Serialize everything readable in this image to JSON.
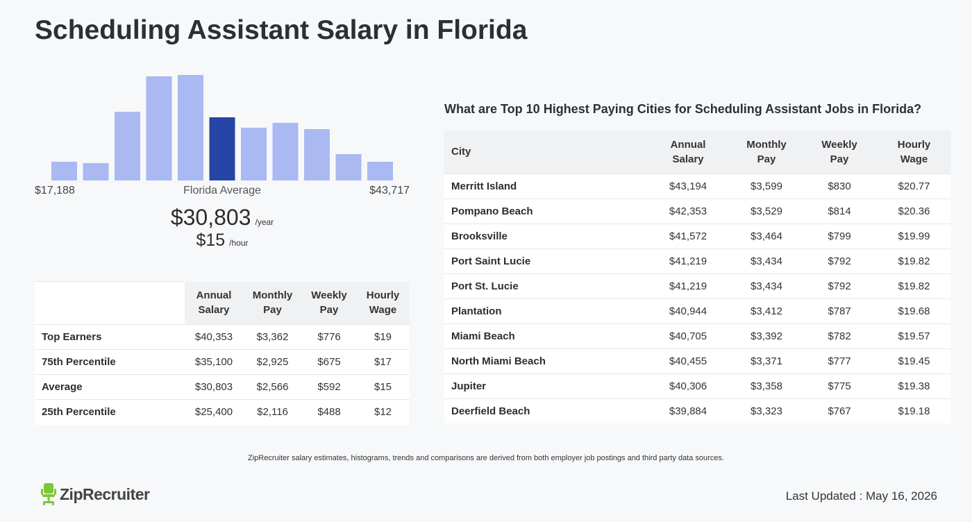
{
  "page": {
    "title": "Scheduling Assistant Salary in Florida"
  },
  "colors": {
    "bar": "#aab9f1",
    "bar_highlight": "#2546a6",
    "logo_green": "#7cc63a"
  },
  "chart_data": {
    "type": "bar",
    "title": "",
    "categories": [
      "1",
      "2",
      "3",
      "4",
      "5",
      "6",
      "7",
      "8",
      "9",
      "10",
      "11"
    ],
    "values": [
      27,
      25,
      99,
      150,
      152,
      91,
      76,
      83,
      74,
      38,
      27
    ],
    "highlight_index": 5,
    "ylim": [
      0,
      152
    ],
    "grid": false,
    "labels": {
      "min": "$17,188",
      "middle": "Florida Average",
      "max": "$43,717"
    }
  },
  "average": {
    "yearly": "$30,803",
    "yearly_unit": "/year",
    "hourly": "$15",
    "hourly_unit": "/hour"
  },
  "percentile_table": {
    "headers": [
      {
        "line1": "Annual",
        "line2": "Salary"
      },
      {
        "line1": "Monthly",
        "line2": "Pay"
      },
      {
        "line1": "Weekly",
        "line2": "Pay"
      },
      {
        "line1": "Hourly",
        "line2": "Wage"
      }
    ],
    "rows": [
      {
        "label": "Top Earners",
        "annual": "$40,353",
        "monthly": "$3,362",
        "weekly": "$776",
        "hourly": "$19"
      },
      {
        "label": "75th Percentile",
        "annual": "$35,100",
        "monthly": "$2,925",
        "weekly": "$675",
        "hourly": "$17"
      },
      {
        "label": "Average",
        "annual": "$30,803",
        "monthly": "$2,566",
        "weekly": "$592",
        "hourly": "$15"
      },
      {
        "label": "25th Percentile",
        "annual": "$25,400",
        "monthly": "$2,116",
        "weekly": "$488",
        "hourly": "$12"
      }
    ]
  },
  "city_table": {
    "title": "What are Top 10 Highest Paying Cities for Scheduling Assistant Jobs in Florida?",
    "city_header": "City",
    "headers": [
      {
        "line1": "Annual",
        "line2": "Salary"
      },
      {
        "line1": "Monthly",
        "line2": "Pay"
      },
      {
        "line1": "Weekly",
        "line2": "Pay"
      },
      {
        "line1": "Hourly",
        "line2": "Wage"
      }
    ],
    "rows": [
      {
        "city": "Merritt Island",
        "annual": "$43,194",
        "monthly": "$3,599",
        "weekly": "$830",
        "hourly": "$20.77"
      },
      {
        "city": "Pompano Beach",
        "annual": "$42,353",
        "monthly": "$3,529",
        "weekly": "$814",
        "hourly": "$20.36"
      },
      {
        "city": "Brooksville",
        "annual": "$41,572",
        "monthly": "$3,464",
        "weekly": "$799",
        "hourly": "$19.99"
      },
      {
        "city": "Port Saint Lucie",
        "annual": "$41,219",
        "monthly": "$3,434",
        "weekly": "$792",
        "hourly": "$19.82"
      },
      {
        "city": "Port St. Lucie",
        "annual": "$41,219",
        "monthly": "$3,434",
        "weekly": "$792",
        "hourly": "$19.82"
      },
      {
        "city": "Plantation",
        "annual": "$40,944",
        "monthly": "$3,412",
        "weekly": "$787",
        "hourly": "$19.68"
      },
      {
        "city": "Miami Beach",
        "annual": "$40,705",
        "monthly": "$3,392",
        "weekly": "$782",
        "hourly": "$19.57"
      },
      {
        "city": "North Miami Beach",
        "annual": "$40,455",
        "monthly": "$3,371",
        "weekly": "$777",
        "hourly": "$19.45"
      },
      {
        "city": "Jupiter",
        "annual": "$40,306",
        "monthly": "$3,358",
        "weekly": "$775",
        "hourly": "$19.38"
      },
      {
        "city": "Deerfield Beach",
        "annual": "$39,884",
        "monthly": "$3,323",
        "weekly": "$767",
        "hourly": "$19.18"
      }
    ]
  },
  "footer": {
    "disclaimer": "ZipRecruiter salary estimates, histograms, trends and comparisons are derived from both employer job postings and third party data sources.",
    "logo_text": "ZipRecruiter",
    "logo_icon": "chair-icon",
    "last_updated": "Last Updated : May 16, 2026"
  }
}
